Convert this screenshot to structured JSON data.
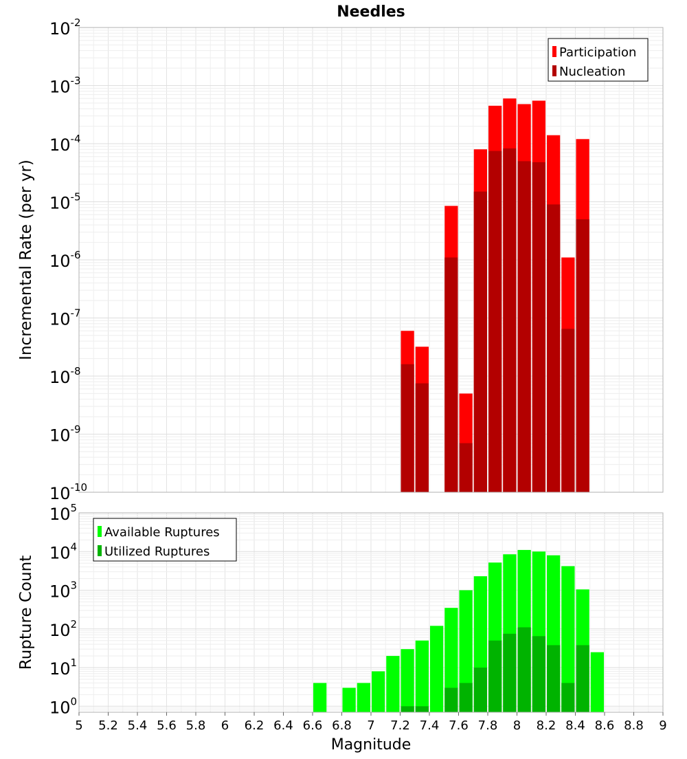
{
  "chart_data": [
    {
      "type": "bar",
      "title": "Needles",
      "xlabel": "",
      "ylabel": "Incremental Rate (per yr)",
      "yscale": "log",
      "ylim": [
        1e-10,
        0.01
      ],
      "xlim": [
        5,
        9
      ],
      "bar_width": 0.1,
      "grid": true,
      "legend_position": "top-right",
      "y_tick_exponents": [
        "-10",
        "-9",
        "-8",
        "-7",
        "-6",
        "-5",
        "-4",
        "-3",
        "-2"
      ],
      "y_tick_base": "10",
      "x": [
        7.25,
        7.35,
        7.55,
        7.65,
        7.75,
        7.85,
        7.95,
        8.05,
        8.15,
        8.25,
        8.35,
        8.45
      ],
      "series": [
        {
          "name": "Participation",
          "color": "#ff0000",
          "values": [
            6e-08,
            3.2e-08,
            8.5e-06,
            5e-09,
            8e-05,
            0.00045,
            0.0006,
            0.00048,
            0.00055,
            0.00014,
            1.1e-06,
            0.00012
          ]
        },
        {
          "name": "Nucleation",
          "color": "#b30000",
          "values": [
            1.6e-08,
            7.5e-09,
            1.1e-06,
            7e-10,
            1.5e-05,
            7.5e-05,
            8.3e-05,
            5e-05,
            4.8e-05,
            9e-06,
            6.5e-08,
            5e-06
          ]
        }
      ]
    },
    {
      "type": "bar",
      "title": "",
      "xlabel": "Magnitude",
      "ylabel": "Rupture Count",
      "yscale": "log",
      "ylim": [
        0.7,
        100000.0
      ],
      "xlim": [
        5,
        9
      ],
      "bar_width": 0.1,
      "grid": true,
      "legend_position": "top-left",
      "y_tick_exponents": [
        "0",
        "1",
        "2",
        "3",
        "4",
        "5"
      ],
      "y_tick_base": "10",
      "x_ticks": [
        "5",
        "5.2",
        "5.4",
        "5.6",
        "5.8",
        "6",
        "6.2",
        "6.4",
        "6.6",
        "6.8",
        "7",
        "7.2",
        "7.4",
        "7.6",
        "7.8",
        "8",
        "8.2",
        "8.4",
        "8.6",
        "8.8",
        "9"
      ],
      "x": [
        6.65,
        6.85,
        6.95,
        7.05,
        7.15,
        7.25,
        7.35,
        7.45,
        7.55,
        7.65,
        7.75,
        7.85,
        7.95,
        8.05,
        8.15,
        8.25,
        8.35,
        8.45,
        8.55
      ],
      "series": [
        {
          "name": "Available Ruptures",
          "color": "#00ff00",
          "values": [
            4,
            3,
            4,
            8,
            20,
            30,
            50,
            120,
            350,
            1000,
            2300,
            5200,
            8500,
            11000,
            10000,
            8000,
            4200,
            1050,
            25
          ]
        },
        {
          "name": "Utilized Ruptures",
          "color": "#00b300",
          "values": [
            0,
            0,
            0,
            0,
            0,
            1,
            1,
            0,
            3,
            4,
            10,
            50,
            75,
            110,
            65,
            38,
            4,
            38,
            0
          ]
        }
      ]
    }
  ]
}
